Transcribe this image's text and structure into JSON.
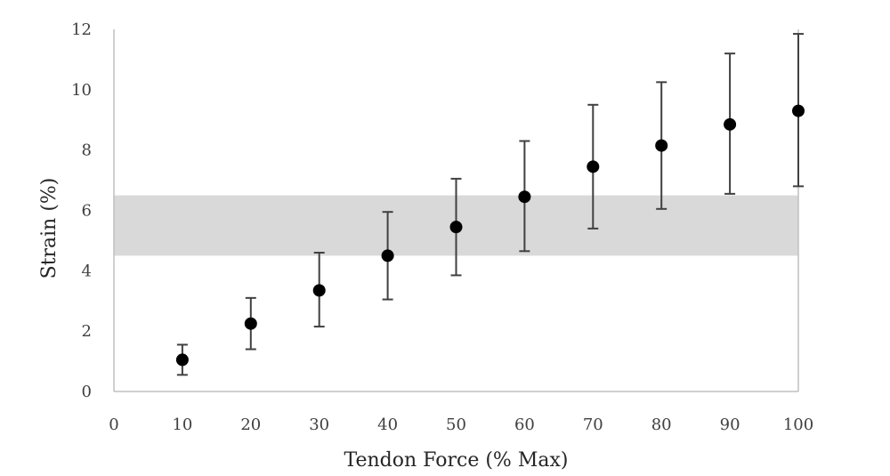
{
  "chart_data": {
    "type": "scatter",
    "xlabel": "Tendon Force (% Max)",
    "ylabel": "Strain (%)",
    "xlim": [
      0,
      100
    ],
    "ylim": [
      0,
      12
    ],
    "xticks": [
      "0",
      "10",
      "20",
      "30",
      "40",
      "50",
      "60",
      "70",
      "80",
      "90",
      "100"
    ],
    "yticks": [
      "0",
      "2",
      "4",
      "6",
      "8",
      "10",
      "12"
    ],
    "grid": false,
    "series": [
      {
        "x": [
          10,
          20,
          30,
          40,
          50,
          60,
          70,
          80,
          90,
          100
        ],
        "y": [
          1.05,
          2.25,
          3.35,
          4.5,
          5.45,
          6.45,
          7.45,
          8.15,
          8.85,
          9.3
        ],
        "error_low": [
          0.5,
          0.85,
          1.2,
          1.45,
          1.6,
          1.8,
          2.05,
          2.1,
          2.3,
          2.5
        ],
        "error_high": [
          0.5,
          0.85,
          1.25,
          1.45,
          1.6,
          1.85,
          2.05,
          2.1,
          2.35,
          2.55
        ],
        "color": "#000000"
      }
    ],
    "band": {
      "y_from": 4.5,
      "y_to": 6.5,
      "color": "#d9d9d9"
    }
  }
}
